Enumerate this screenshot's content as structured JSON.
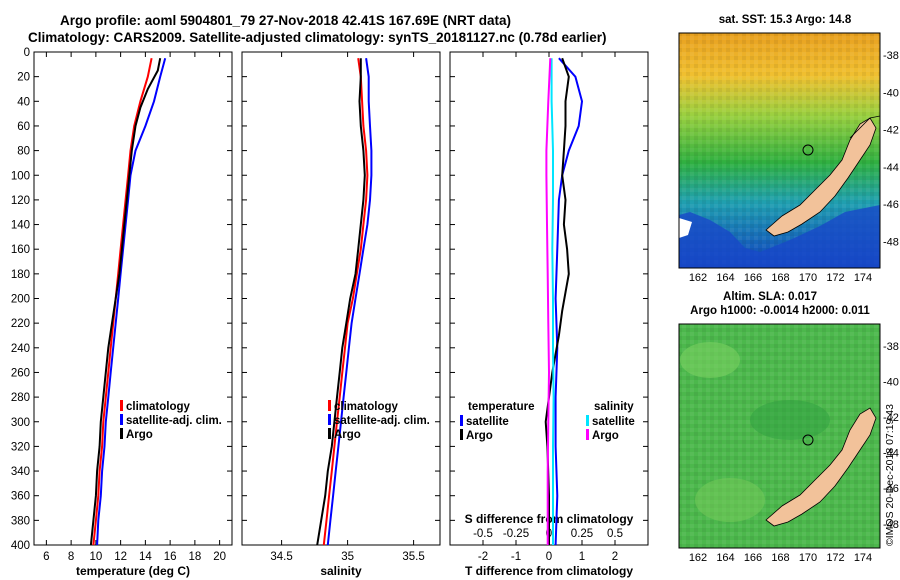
{
  "header": {
    "line1": "Argo profile: aoml 5904801_79 27-Nov-2018 42.41S 167.69E (NRT data)",
    "line2": "Climatology: CARS2009. Satellite-adjusted climatology: synTS_20181127.nc (0.78d earlier)"
  },
  "credit": "©IMOS 20-Dec-2018 07:19:43",
  "colors": {
    "climatology": "#ff0000",
    "satellite": "#0000ff",
    "argo": "#000000",
    "sat_diff": "#00e5ff",
    "sal_diff": "#ff00ff",
    "land": "#f2c29a"
  },
  "maps": {
    "sst": {
      "title": "sat. SST: 15.3 Argo: 14.8"
    },
    "sla": {
      "title_line1": "Altim. SLA: 0.017",
      "title_line2": "Argo h1000: -0.0014 h2000: 0.011"
    },
    "lat_ticks": [
      "-38",
      "-40",
      "-42",
      "-44",
      "-46",
      "-48"
    ],
    "lon_ticks": [
      "162",
      "164",
      "166",
      "168",
      "170",
      "172",
      "174"
    ]
  },
  "chart_data": [
    {
      "type": "line",
      "name": "temperature",
      "xlabel": "temperature (deg C)",
      "xlim": [
        5,
        21
      ],
      "xticks": [
        "6",
        "8",
        "10",
        "12",
        "14",
        "16",
        "18",
        "20"
      ],
      "ylim": [
        400,
        0
      ],
      "yticks": [
        "0",
        "20",
        "40",
        "60",
        "80",
        "100",
        "120",
        "140",
        "160",
        "180",
        "200",
        "220",
        "240",
        "260",
        "280",
        "300",
        "320",
        "340",
        "360",
        "380",
        "400"
      ],
      "legend": [
        "climatology",
        "satellite-adj. clim.",
        "Argo"
      ],
      "series": [
        {
          "name": "climatology",
          "color": "#ff0000",
          "points": [
            [
              14.5,
              5
            ],
            [
              14.2,
              20
            ],
            [
              13.6,
              40
            ],
            [
              13.1,
              60
            ],
            [
              12.8,
              80
            ],
            [
              12.6,
              100
            ],
            [
              12.4,
              120
            ],
            [
              12.2,
              140
            ],
            [
              12.0,
              160
            ],
            [
              11.8,
              180
            ],
            [
              11.6,
              200
            ],
            [
              11.4,
              220
            ],
            [
              11.2,
              240
            ],
            [
              11.0,
              260
            ],
            [
              10.8,
              280
            ],
            [
              10.6,
              300
            ],
            [
              10.5,
              320
            ],
            [
              10.3,
              340
            ],
            [
              10.2,
              360
            ],
            [
              10.0,
              380
            ],
            [
              9.8,
              400
            ]
          ]
        },
        {
          "name": "satellite-adj. clim.",
          "color": "#0000ff",
          "points": [
            [
              15.6,
              5
            ],
            [
              15.2,
              20
            ],
            [
              14.7,
              40
            ],
            [
              14.0,
              60
            ],
            [
              13.2,
              80
            ],
            [
              12.8,
              100
            ],
            [
              12.6,
              120
            ],
            [
              12.4,
              140
            ],
            [
              12.2,
              160
            ],
            [
              12.0,
              180
            ],
            [
              11.8,
              200
            ],
            [
              11.6,
              220
            ],
            [
              11.4,
              240
            ],
            [
              11.2,
              260
            ],
            [
              11.0,
              280
            ],
            [
              10.8,
              300
            ],
            [
              10.7,
              320
            ],
            [
              10.5,
              340
            ],
            [
              10.4,
              360
            ],
            [
              10.2,
              380
            ],
            [
              10.1,
              400
            ]
          ]
        },
        {
          "name": "Argo",
          "color": "#000000",
          "points": [
            [
              15.2,
              5
            ],
            [
              15.0,
              15
            ],
            [
              14.2,
              30
            ],
            [
              13.6,
              45
            ],
            [
              13.2,
              60
            ],
            [
              12.9,
              80
            ],
            [
              12.7,
              100
            ],
            [
              12.5,
              120
            ],
            [
              12.3,
              140
            ],
            [
              12.1,
              160
            ],
            [
              11.9,
              180
            ],
            [
              11.6,
              200
            ],
            [
              11.3,
              220
            ],
            [
              11.0,
              240
            ],
            [
              10.8,
              260
            ],
            [
              10.6,
              280
            ],
            [
              10.4,
              300
            ],
            [
              10.3,
              320
            ],
            [
              10.1,
              340
            ],
            [
              10.0,
              360
            ],
            [
              9.8,
              380
            ],
            [
              9.6,
              400
            ]
          ]
        }
      ]
    },
    {
      "type": "line",
      "name": "salinity",
      "xlabel": "salinity",
      "xlim": [
        34.2,
        35.7
      ],
      "xticks": [
        "34.5",
        "35",
        "35.5"
      ],
      "ylim": [
        400,
        0
      ],
      "legend": [
        "climatology",
        "satellite-adj. clim.",
        "Argo"
      ],
      "series": [
        {
          "name": "climatology",
          "color": "#ff0000",
          "points": [
            [
              35.08,
              5
            ],
            [
              35.1,
              20
            ],
            [
              35.11,
              40
            ],
            [
              35.12,
              60
            ],
            [
              35.14,
              80
            ],
            [
              35.15,
              100
            ],
            [
              35.14,
              120
            ],
            [
              35.12,
              140
            ],
            [
              35.1,
              160
            ],
            [
              35.07,
              180
            ],
            [
              35.04,
              200
            ],
            [
              35.0,
              220
            ],
            [
              34.98,
              240
            ],
            [
              34.96,
              260
            ],
            [
              34.94,
              280
            ],
            [
              34.92,
              300
            ],
            [
              34.9,
              320
            ],
            [
              34.88,
              340
            ],
            [
              34.86,
              360
            ],
            [
              34.84,
              380
            ],
            [
              34.82,
              400
            ]
          ]
        },
        {
          "name": "satellite-adj. clim.",
          "color": "#0000ff",
          "points": [
            [
              35.14,
              5
            ],
            [
              35.16,
              20
            ],
            [
              35.16,
              40
            ],
            [
              35.17,
              60
            ],
            [
              35.18,
              80
            ],
            [
              35.18,
              100
            ],
            [
              35.17,
              120
            ],
            [
              35.15,
              140
            ],
            [
              35.12,
              160
            ],
            [
              35.09,
              180
            ],
            [
              35.06,
              200
            ],
            [
              35.03,
              220
            ],
            [
              35.01,
              240
            ],
            [
              34.99,
              260
            ],
            [
              34.97,
              280
            ],
            [
              34.95,
              300
            ],
            [
              34.93,
              320
            ],
            [
              34.91,
              340
            ],
            [
              34.89,
              360
            ],
            [
              34.87,
              380
            ],
            [
              34.85,
              400
            ]
          ]
        },
        {
          "name": "Argo",
          "color": "#000000",
          "points": [
            [
              35.1,
              5
            ],
            [
              35.1,
              20
            ],
            [
              35.09,
              40
            ],
            [
              35.1,
              60
            ],
            [
              35.12,
              80
            ],
            [
              35.13,
              100
            ],
            [
              35.12,
              120
            ],
            [
              35.1,
              140
            ],
            [
              35.08,
              160
            ],
            [
              35.06,
              180
            ],
            [
              35.02,
              200
            ],
            [
              34.99,
              220
            ],
            [
              34.96,
              240
            ],
            [
              34.94,
              260
            ],
            [
              34.92,
              280
            ],
            [
              34.9,
              300
            ],
            [
              34.88,
              320
            ],
            [
              34.85,
              340
            ],
            [
              34.83,
              360
            ],
            [
              34.8,
              380
            ],
            [
              34.77,
              400
            ]
          ]
        }
      ]
    },
    {
      "type": "line",
      "name": "difference",
      "xlabel": "T difference from climatology",
      "xlim": [
        -3,
        3
      ],
      "xticks": [
        "-2",
        "-1",
        "0",
        "1",
        "2"
      ],
      "top_xlabel": "S difference from climatology",
      "top_xticks": [
        "-0.5",
        "-0.25",
        "0",
        "0.25",
        "0.5"
      ],
      "top_xlim": [
        -0.75,
        0.75
      ],
      "ylim": [
        400,
        0
      ],
      "legend_temperature_title": "temperature",
      "legend_temperature": [
        "satellite",
        "Argo"
      ],
      "legend_salinity_title": "salinity",
      "legend_salinity": [
        "satellite",
        "Argo"
      ],
      "series": [
        {
          "name": "T satellite",
          "color": "#0000ff",
          "points": [
            [
              0.3,
              5
            ],
            [
              0.8,
              20
            ],
            [
              1.0,
              40
            ],
            [
              0.9,
              60
            ],
            [
              0.6,
              80
            ],
            [
              0.4,
              100
            ],
            [
              0.3,
              120
            ],
            [
              0.25,
              160
            ],
            [
              0.2,
              200
            ],
            [
              0.25,
              240
            ],
            [
              0.2,
              280
            ],
            [
              0.2,
              320
            ],
            [
              0.25,
              360
            ],
            [
              0.2,
              400
            ]
          ]
        },
        {
          "name": "T Argo",
          "color": "#000000",
          "points": [
            [
              0.4,
              5
            ],
            [
              0.6,
              20
            ],
            [
              0.5,
              40
            ],
            [
              0.5,
              60
            ],
            [
              0.45,
              80
            ],
            [
              0.4,
              100
            ],
            [
              0.5,
              120
            ],
            [
              0.45,
              140
            ],
            [
              0.55,
              160
            ],
            [
              0.6,
              180
            ],
            [
              0.5,
              195
            ],
            [
              0.4,
              210
            ],
            [
              0.3,
              230
            ],
            [
              0.1,
              260
            ],
            [
              0.0,
              280
            ],
            [
              -0.1,
              300
            ],
            [
              -0.05,
              320
            ],
            [
              0.0,
              360
            ],
            [
              0.0,
              400
            ]
          ]
        },
        {
          "name": "S satellite",
          "color": "#00e5ff",
          "points": [
            [
              0.02,
              5
            ],
            [
              0.02,
              40
            ],
            [
              0.03,
              80
            ],
            [
              0.03,
              120
            ],
            [
              0.025,
              160
            ],
            [
              0.03,
              200
            ],
            [
              0.03,
              240
            ],
            [
              0.035,
              280
            ],
            [
              0.03,
              320
            ],
            [
              0.03,
              360
            ],
            [
              0.03,
              400
            ]
          ]
        },
        {
          "name": "S Argo",
          "color": "#ff00ff",
          "points": [
            [
              0.01,
              5
            ],
            [
              -0.005,
              40
            ],
            [
              -0.02,
              80
            ],
            [
              -0.02,
              100
            ],
            [
              -0.015,
              140
            ],
            [
              -0.01,
              180
            ],
            [
              -0.005,
              220
            ],
            [
              -0.0,
              260
            ],
            [
              -0.005,
              300
            ],
            [
              -0.01,
              340
            ],
            [
              -0.01,
              380
            ],
            [
              -0.01,
              400
            ]
          ]
        }
      ]
    }
  ]
}
